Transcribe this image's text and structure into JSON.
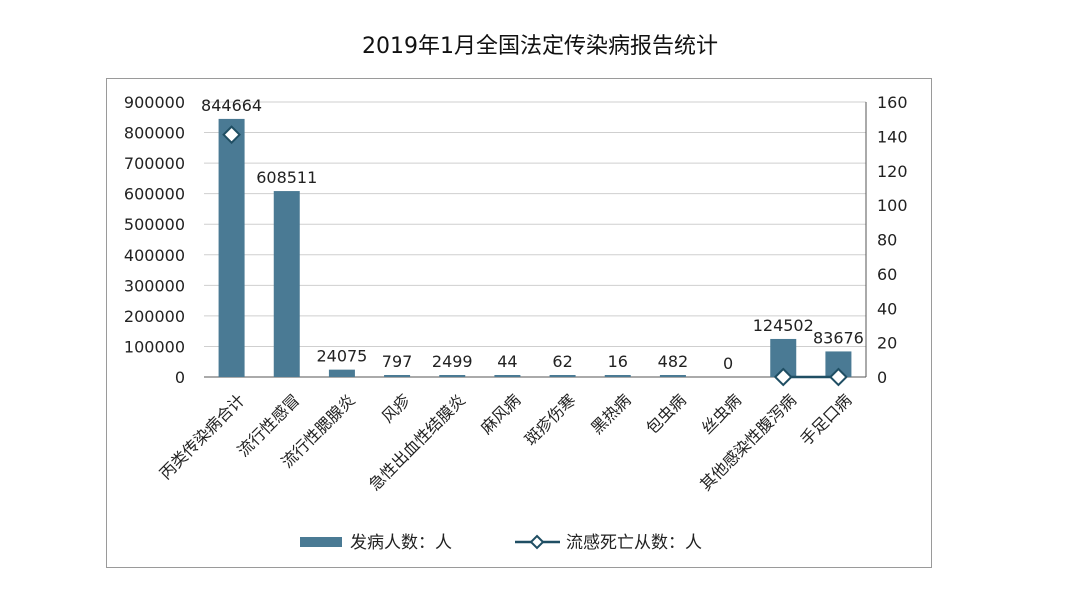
{
  "chart_data": {
    "type": "bar",
    "title": "2019年1月全国法定传染病报告统计",
    "categories": [
      "丙类传染病合计",
      "流行性感冒",
      "流行性腮腺炎",
      "风疹",
      "急性出血性结膜炎",
      "麻风病",
      "斑疹伤寒",
      "黑热病",
      "包虫病",
      "丝虫病",
      "其他感染性腹泻病",
      "手足口病"
    ],
    "series": [
      {
        "name": "发病人数：人",
        "type": "bar",
        "axis": "left",
        "color": "#4a7a94",
        "values": [
          844664,
          608511,
          24075,
          797,
          2499,
          44,
          62,
          16,
          482,
          0,
          124502,
          83676
        ]
      },
      {
        "name": "流感死亡从数：人",
        "type": "line",
        "axis": "right",
        "color": "#1f4e63",
        "points": [
          {
            "category": "丙类传染病合计",
            "value": 141
          },
          {
            "category": "其他感染性腹泻病",
            "value": 0
          },
          {
            "category": "手足口病",
            "value": 0
          }
        ]
      }
    ],
    "y_left": {
      "min": 0,
      "max": 900000,
      "ticks": [
        "0",
        "100000",
        "200000",
        "300000",
        "400000",
        "500000",
        "600000",
        "700000",
        "800000",
        "900000"
      ]
    },
    "y_right": {
      "min": 0,
      "max": 160,
      "ticks": [
        "0",
        "20",
        "40",
        "60",
        "80",
        "100",
        "120",
        "140",
        "160"
      ]
    },
    "data_labels": [
      "844664",
      "608511",
      "24075",
      "797",
      "2499",
      "44",
      "62",
      "16",
      "482",
      "0",
      "124502",
      "83676"
    ],
    "grid": true,
    "legend_position": "bottom"
  }
}
